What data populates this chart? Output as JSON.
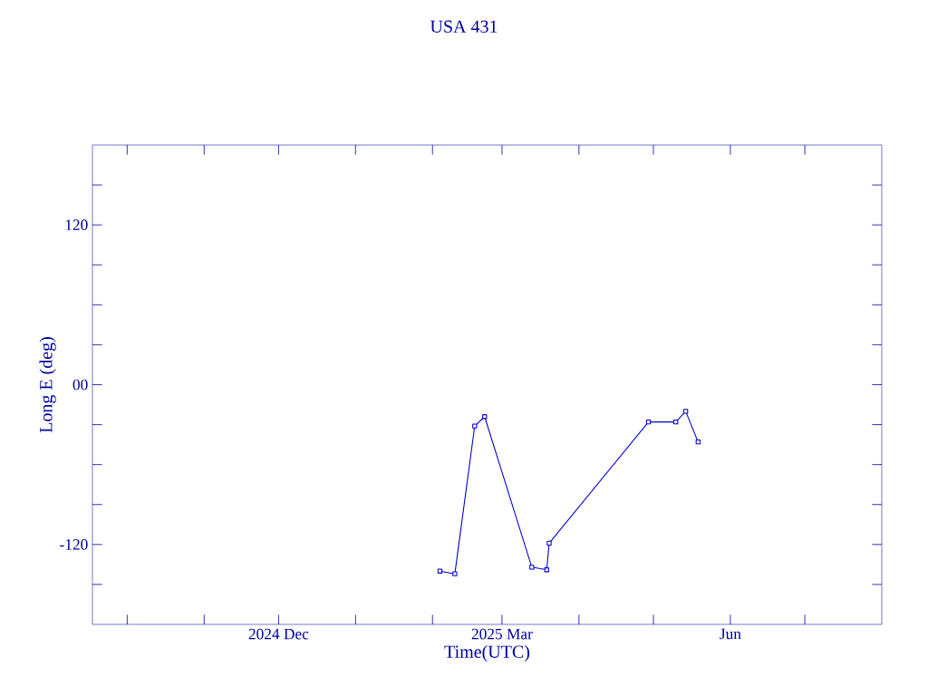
{
  "chart_data": {
    "type": "line",
    "title": "USA 431",
    "xlabel": "Time(UTC)",
    "ylabel": "Long E (deg)",
    "x": [
      "2025-02-04",
      "2025-02-10",
      "2025-02-18",
      "2025-02-22",
      "2025-03-13",
      "2025-03-19",
      "2025-03-20",
      "2025-04-29",
      "2025-05-10",
      "2025-05-14",
      "2025-05-19"
    ],
    "series": [
      {
        "color": "#0000cc",
        "values": [
          -140,
          -142,
          -31,
          -24,
          -137,
          -139,
          -119,
          -28,
          -28,
          -20,
          -43
        ]
      }
    ],
    "xlim": [
      "2024-09-17",
      "2025-08-01"
    ],
    "xticks": [
      {
        "value": "2024-10-01",
        "label": null
      },
      {
        "value": "2024-11-01",
        "label": null
      },
      {
        "value": "2024-12-01",
        "label": "2024 Dec"
      },
      {
        "value": "2025-01-01",
        "label": null
      },
      {
        "value": "2025-02-01",
        "label": null
      },
      {
        "value": "2025-03-01",
        "label": "2025 Mar"
      },
      {
        "value": "2025-04-01",
        "label": null
      },
      {
        "value": "2025-05-01",
        "label": null
      },
      {
        "value": "2025-06-01",
        "label": "Jun"
      },
      {
        "value": "2025-07-01",
        "label": null
      }
    ],
    "ylim": [
      -180,
      180
    ],
    "yticks": [
      {
        "value": -150,
        "label": null
      },
      -120,
      {
        "value": -90,
        "label": null
      },
      {
        "value": -60,
        "label": null
      },
      {
        "value": -30,
        "label": null
      },
      {
        "value": 0,
        "label": "00"
      },
      {
        "value": 30,
        "label": null
      },
      {
        "value": 60,
        "label": null
      },
      {
        "value": 90,
        "label": null
      },
      120,
      {
        "value": 150,
        "label": null
      }
    ],
    "grid": false,
    "marker": "square",
    "line_style": "solid"
  }
}
